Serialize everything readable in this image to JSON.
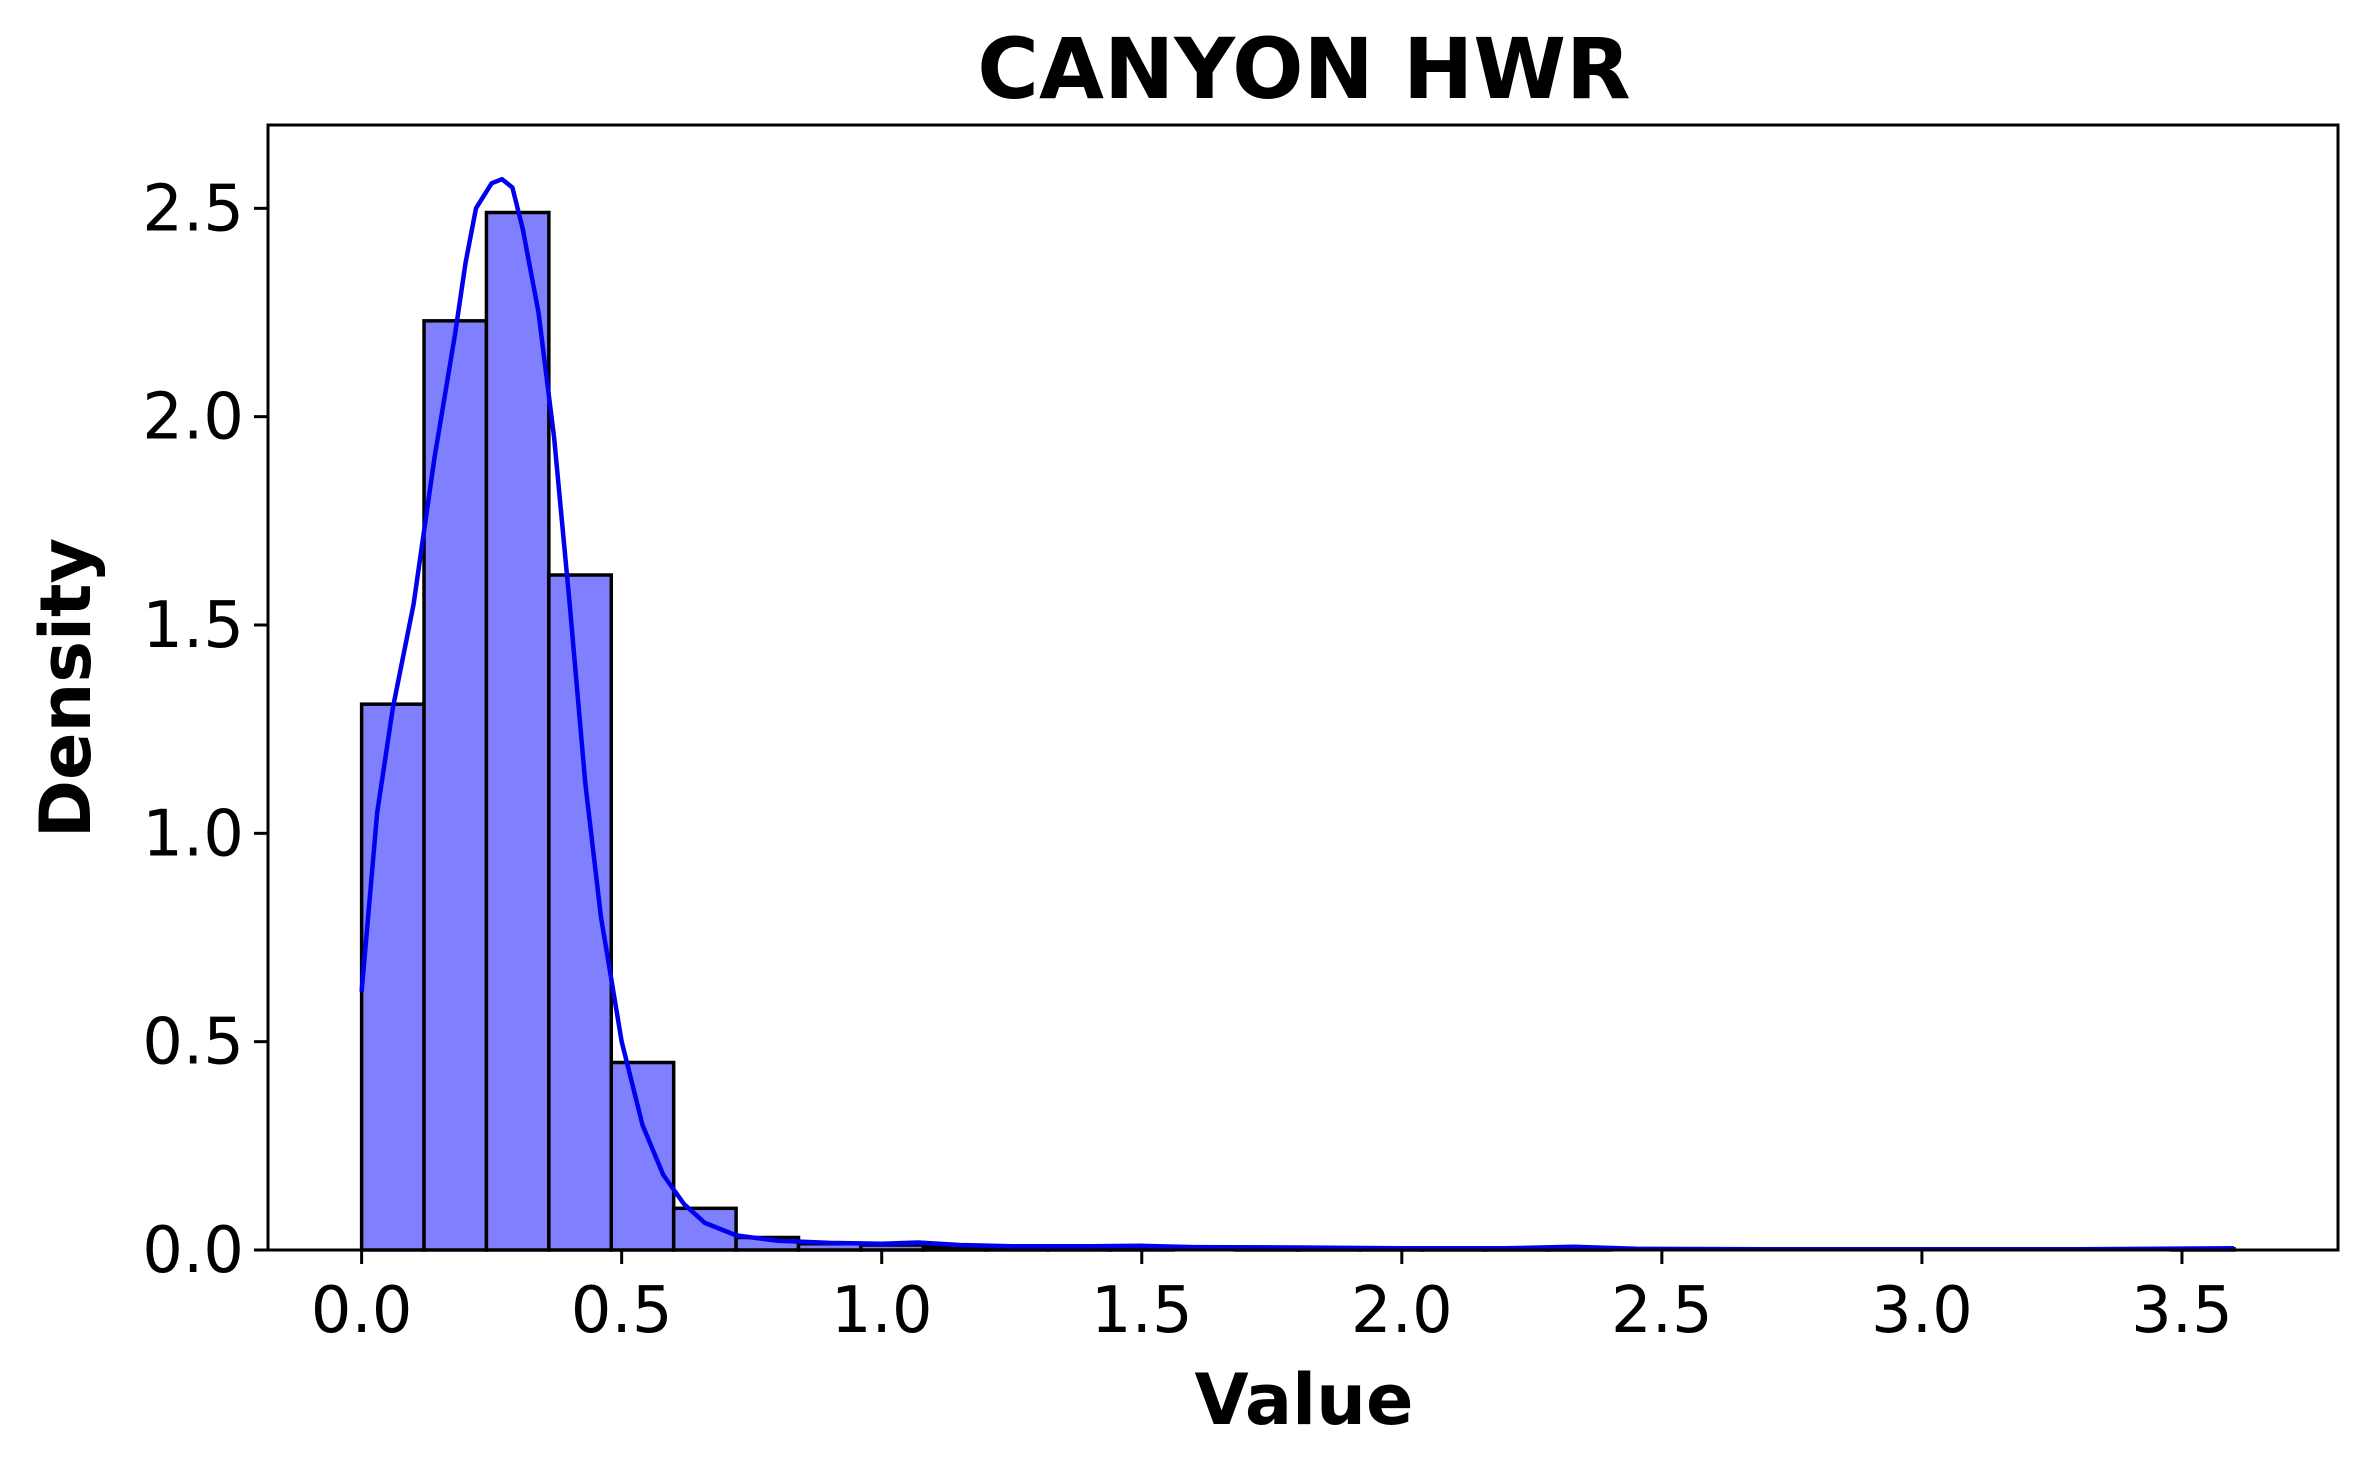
{
  "chart_data": {
    "type": "bar",
    "title": "CANYON HWR",
    "xlabel": "Value",
    "ylabel": "Density",
    "xlim": [
      -0.18,
      3.8
    ],
    "ylim": [
      0,
      2.7
    ],
    "xticks": [
      "0.0",
      "0.5",
      "1.0",
      "1.5",
      "2.0",
      "2.5",
      "3.0",
      "3.5"
    ],
    "yticks": [
      "0.0",
      "0.5",
      "1.0",
      "1.5",
      "2.0",
      "2.5"
    ],
    "grid": false,
    "legend": "none",
    "bins": {
      "edges": [
        0.0,
        0.12,
        0.24,
        0.36,
        0.48,
        0.6,
        0.72,
        0.84,
        0.96,
        1.08,
        1.2,
        1.32,
        1.44,
        1.56,
        1.68,
        1.8,
        1.92,
        2.04,
        2.16,
        2.28,
        2.4,
        2.52,
        2.64,
        2.76,
        2.88,
        3.0,
        3.12,
        3.24,
        3.36,
        3.48,
        3.6
      ],
      "density": [
        1.31,
        2.23,
        2.49,
        1.62,
        0.45,
        0.1,
        0.03,
        0.015,
        0.012,
        0.008,
        0.006,
        0.006,
        0.004,
        0.0,
        0.004,
        0.003,
        0.003,
        0.002,
        0.002,
        0.004,
        0.0,
        0.0,
        0.0,
        0.0,
        0.0,
        0.0,
        0.0,
        0.0,
        0.0,
        0.003
      ]
    },
    "kde": {
      "x": [
        0.0,
        0.03,
        0.06,
        0.1,
        0.14,
        0.18,
        0.2,
        0.22,
        0.25,
        0.27,
        0.29,
        0.31,
        0.34,
        0.37,
        0.4,
        0.43,
        0.46,
        0.5,
        0.54,
        0.58,
        0.62,
        0.66,
        0.72,
        0.8,
        0.9,
        1.0,
        1.07,
        1.15,
        1.25,
        1.4,
        1.5,
        1.6,
        1.8,
        2.0,
        2.2,
        2.33,
        2.45,
        2.7,
        3.0,
        3.3,
        3.6
      ],
      "y": [
        0.62,
        1.05,
        1.3,
        1.55,
        1.9,
        2.2,
        2.37,
        2.5,
        2.56,
        2.57,
        2.55,
        2.45,
        2.25,
        1.95,
        1.55,
        1.12,
        0.8,
        0.5,
        0.3,
        0.18,
        0.11,
        0.065,
        0.035,
        0.022,
        0.017,
        0.015,
        0.018,
        0.012,
        0.009,
        0.009,
        0.01,
        0.007,
        0.006,
        0.004,
        0.004,
        0.008,
        0.003,
        0.002,
        0.002,
        0.002,
        0.004
      ],
      "color": "#0000ee"
    },
    "colors": {
      "bar_fill": "#8080ff",
      "bar_edge": "#000000",
      "kde": "#0000ee"
    }
  }
}
